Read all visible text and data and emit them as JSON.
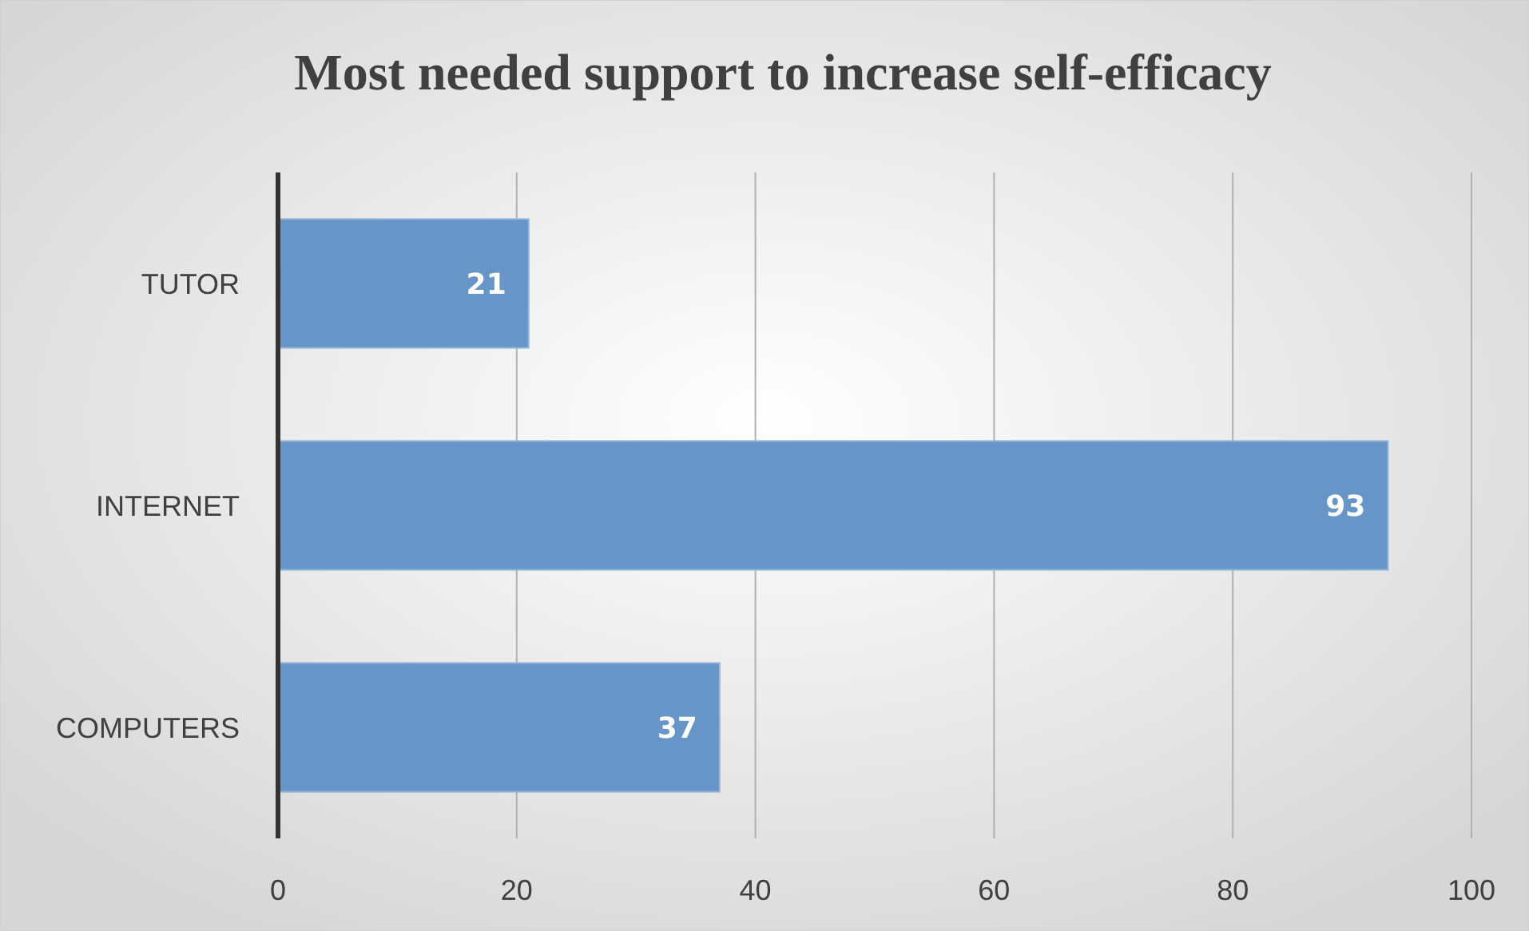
{
  "chart_data": {
    "type": "bar",
    "orientation": "horizontal",
    "title": "Most needed support to increase self-efficacy",
    "categories": [
      "TUTOR",
      "INTERNET",
      "COMPUTERS"
    ],
    "values": [
      21,
      93,
      37
    ],
    "color": "#6895c7",
    "xlim": [
      0,
      100
    ],
    "xticks": [
      0,
      20,
      40,
      60,
      80,
      100
    ],
    "grid": "x",
    "data_labels": true
  }
}
